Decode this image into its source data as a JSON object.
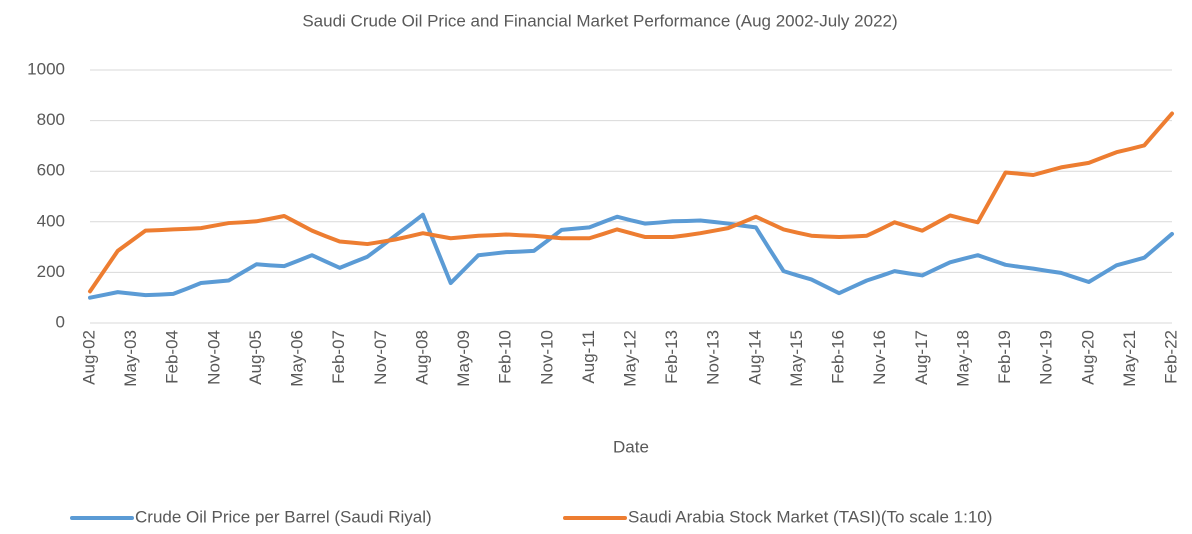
{
  "chart_data": {
    "type": "line",
    "title": "Saudi Crude Oil Price and Financial Market Performance (Aug 2002-July 2022)",
    "x_label": "Date",
    "categories": [
      "Aug-02",
      null,
      null,
      "May-03",
      null,
      null,
      "Feb-04",
      null,
      null,
      "Nov-04",
      null,
      null,
      "Aug-05",
      null,
      null,
      "May-06",
      null,
      null,
      "Feb-07",
      null,
      null,
      "Nov-07",
      null,
      null,
      "Aug-08",
      null,
      null,
      "May-09",
      null,
      null,
      "Feb-10",
      null,
      null,
      "Nov-10",
      null,
      null,
      "Aug-11",
      null,
      null,
      "May-12",
      null,
      null,
      "Feb-13",
      null,
      null,
      "Nov-13",
      null,
      null,
      "Aug-14",
      null,
      null,
      "May-15",
      null,
      null,
      "Feb-16",
      null,
      null,
      "Nov-16",
      null,
      null,
      "Aug-17",
      null,
      null,
      "May-18",
      null,
      null,
      "Feb-19",
      null,
      null,
      "Nov-19",
      null,
      null,
      "Aug-20",
      null,
      null,
      "May-21",
      null,
      null,
      "Feb-22"
    ],
    "series": [
      {
        "name": "Crude Oil Price per Barrel (Saudi Riyal)",
        "color": "#5b9bd5",
        "values": [
          100,
          111,
          122,
          116,
          110,
          112,
          115,
          136,
          158,
          163,
          168,
          200,
          232,
          228,
          225,
          246,
          268,
          243,
          218,
          240,
          262,
          303,
          345,
          386,
          428,
          293,
          158,
          213,
          268,
          274,
          280,
          282,
          285,
          326,
          368,
          373,
          378,
          399,
          420,
          406,
          393,
          397,
          402,
          403,
          405,
          399,
          393,
          385,
          378,
          291,
          205,
          188,
          172,
          145,
          118,
          143,
          168,
          186,
          205,
          196,
          188,
          214,
          240,
          254,
          268,
          249,
          230,
          222,
          215,
          206,
          198,
          180,
          162,
          195,
          228,
          243,
          258,
          305,
          352
        ]
      },
      {
        "name": "Saudi Arabia Stock Market (TASI)(To scale 1:10)",
        "color": "#ed7d31",
        "values": [
          125,
          205,
          285,
          325,
          365,
          367,
          370,
          372,
          375,
          385,
          395,
          398,
          402,
          412,
          423,
          394,
          365,
          343,
          322,
          317,
          312,
          321,
          330,
          342,
          355,
          345,
          335,
          340,
          345,
          347,
          350,
          347,
          345,
          340,
          335,
          335,
          335,
          352,
          370,
          355,
          340,
          340,
          340,
          347,
          355,
          365,
          375,
          397,
          420,
          395,
          370,
          357,
          345,
          342,
          340,
          342,
          345,
          371,
          398,
          381,
          365,
          395,
          425,
          411,
          398,
          496,
          595,
          590,
          585,
          600,
          615,
          624,
          633,
          654,
          675,
          688,
          702,
          765,
          828
        ]
      }
    ],
    "ylim": [
      0,
      1000
    ],
    "yticks": [
      0,
      200,
      400,
      600,
      800,
      1000
    ],
    "grid": true,
    "legend": "bottom"
  }
}
